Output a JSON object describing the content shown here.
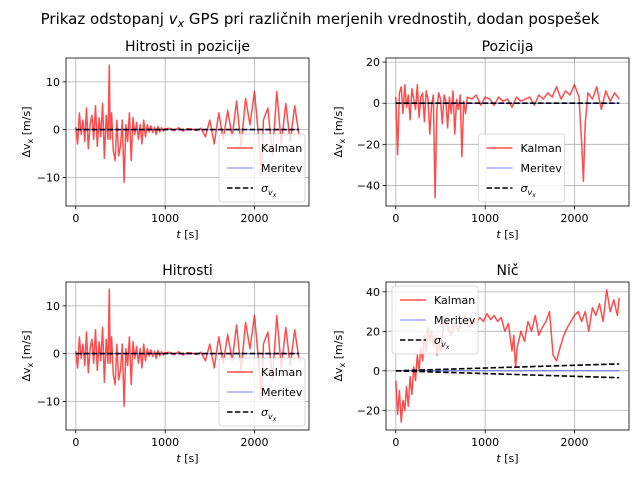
{
  "suptitle": {
    "prefix": "Prikaz odstopanj ",
    "var": "v",
    "sub": "x",
    "suffix": " GPS pri različnih merjenih vrednostih, dodan pospešek"
  },
  "chart_data": [
    {
      "type": "line",
      "title": "Hitrosti in pozicije",
      "xlabel": "t [s]",
      "ylabel": "Δv_x [m/s]",
      "xlim": [
        -110,
        2610
      ],
      "ylim": [
        -16,
        15
      ],
      "xticks": [
        0,
        1000,
        2000
      ],
      "yticks": [
        -10,
        0,
        10
      ],
      "grid": true,
      "legend_position": "lower-right",
      "series": [
        {
          "name": "Kalman",
          "color": "#ff0000",
          "opacity": 0.7,
          "x": [
            0,
            20,
            40,
            60,
            80,
            100,
            120,
            140,
            160,
            180,
            200,
            220,
            240,
            260,
            280,
            300,
            320,
            340,
            360,
            375,
            385,
            400,
            420,
            440,
            460,
            480,
            500,
            520,
            540,
            560,
            580,
            600,
            620,
            640,
            660,
            680,
            700,
            720,
            740,
            760,
            780,
            800,
            820,
            840,
            860,
            880,
            900,
            920,
            940,
            960,
            980,
            1000,
            1050,
            1100,
            1150,
            1200,
            1250,
            1300,
            1350,
            1400,
            1450,
            1500,
            1550,
            1600,
            1650,
            1700,
            1750,
            1800,
            1850,
            1900,
            1950,
            2000,
            2050,
            2080,
            2100,
            2150,
            2200,
            2250,
            2300,
            2350,
            2400,
            2450,
            2500
          ],
          "y": [
            0.5,
            -3.0,
            3.5,
            -1.0,
            2.0,
            -2.5,
            4.5,
            -4.0,
            1.0,
            3.0,
            -2.0,
            5.0,
            -3.5,
            2.5,
            -1.5,
            5.5,
            -6.0,
            3.0,
            -2.0,
            13.5,
            -2.0,
            3.5,
            -4.5,
            -6.5,
            2.0,
            -5.5,
            -3.5,
            2.0,
            -11.0,
            1.0,
            -2.5,
            3.5,
            -6.5,
            2.5,
            -1.0,
            1.5,
            -2.0,
            1.0,
            -3.0,
            2.0,
            -1.5,
            1.0,
            -0.5,
            0.8,
            -0.6,
            0.5,
            -1.0,
            0.7,
            -0.5,
            0.4,
            -0.3,
            0.2,
            0.3,
            -0.2,
            0.4,
            -0.3,
            0.2,
            0.1,
            -0.2,
            0.3,
            -1.5,
            2.0,
            -3.0,
            3.5,
            -2.0,
            4.0,
            -1.5,
            6.0,
            -3.5,
            6.5,
            1.0,
            8.0,
            -2.5,
            -9.5,
            2.0,
            4.5,
            -5.5,
            8.0,
            -3.0,
            5.5,
            -2.5,
            5.0,
            -1.5
          ]
        },
        {
          "name": "Meritev",
          "color": "#0000ff",
          "opacity": 0.35,
          "x": [
            0,
            500,
            1000,
            1500,
            2000,
            2500
          ],
          "y": [
            0,
            0,
            0,
            0,
            0,
            0
          ]
        },
        {
          "name": "σ_{v_x}",
          "color": "#000000",
          "opacity": 1,
          "x": [
            0,
            2500
          ],
          "y": [
            0,
            0
          ],
          "dashed": true
        }
      ]
    },
    {
      "type": "line",
      "title": "Pozicija",
      "xlabel": "t [s]",
      "ylabel": "Δv_x [m/s]",
      "xlim": [
        -110,
        2610
      ],
      "ylim": [
        -50,
        22
      ],
      "xticks": [
        0,
        1000,
        2000
      ],
      "yticks": [
        -40,
        -20,
        0,
        20
      ],
      "grid": true,
      "legend_position": "lower-center",
      "series": [
        {
          "name": "Kalman",
          "color": "#ff0000",
          "opacity": 0.7,
          "x": [
            0,
            20,
            40,
            60,
            80,
            100,
            120,
            140,
            160,
            180,
            200,
            220,
            240,
            260,
            280,
            300,
            320,
            340,
            360,
            380,
            400,
            420,
            440,
            460,
            480,
            500,
            520,
            540,
            560,
            580,
            600,
            620,
            640,
            660,
            680,
            700,
            720,
            740,
            760,
            780,
            800,
            850,
            900,
            950,
            1000,
            1050,
            1100,
            1150,
            1200,
            1250,
            1300,
            1350,
            1400,
            1450,
            1500,
            1550,
            1600,
            1650,
            1700,
            1750,
            1800,
            1850,
            1900,
            1950,
            2000,
            2050,
            2080,
            2100,
            2120,
            2150,
            2200,
            2250,
            2300,
            2350,
            2400,
            2450,
            2500
          ],
          "y": [
            3,
            -25,
            5,
            8,
            -5,
            9,
            -2,
            4,
            -8,
            7,
            2,
            -3,
            9,
            -7,
            3,
            5,
            -9,
            6,
            2,
            -15,
            -1,
            4,
            -46,
            -3,
            5,
            2,
            -10,
            4,
            1,
            -12,
            3,
            -5,
            6,
            -15,
            2,
            -3,
            4,
            -26,
            1,
            -5,
            3,
            2,
            4,
            -1,
            3,
            2,
            -1,
            3,
            1,
            2,
            -2,
            3,
            1,
            2,
            3,
            -1,
            4,
            2,
            5,
            3,
            8,
            2,
            6,
            4,
            9,
            3,
            -20,
            -38,
            -10,
            5,
            2,
            8,
            -3,
            6,
            1,
            5,
            2
          ]
        },
        {
          "name": "Meritev",
          "color": "#0000ff",
          "opacity": 0.35,
          "x": [
            0,
            500,
            1000,
            1500,
            2000,
            2500
          ],
          "y": [
            0,
            0,
            0,
            0,
            0,
            0
          ]
        },
        {
          "name": "σ_{v_x}",
          "color": "#000000",
          "opacity": 1,
          "x": [
            0,
            2500
          ],
          "y": [
            0,
            0
          ],
          "dashed": true
        }
      ]
    },
    {
      "type": "line",
      "title": "Hitrosti",
      "xlabel": "t [s]",
      "ylabel": "Δv_x [m/s]",
      "xlim": [
        -110,
        2610
      ],
      "ylim": [
        -16,
        15
      ],
      "xticks": [
        0,
        1000,
        2000
      ],
      "yticks": [
        -10,
        0,
        10
      ],
      "grid": true,
      "legend_position": "lower-right",
      "series": [
        {
          "name": "Kalman",
          "color": "#ff0000",
          "opacity": 0.7,
          "x": [
            0,
            20,
            40,
            60,
            80,
            100,
            120,
            140,
            160,
            180,
            200,
            220,
            240,
            260,
            280,
            300,
            320,
            340,
            360,
            375,
            385,
            400,
            420,
            440,
            460,
            480,
            500,
            520,
            540,
            560,
            580,
            600,
            620,
            640,
            660,
            680,
            700,
            720,
            740,
            760,
            780,
            800,
            820,
            840,
            860,
            880,
            900,
            920,
            940,
            960,
            980,
            1000,
            1050,
            1100,
            1150,
            1200,
            1250,
            1300,
            1350,
            1400,
            1450,
            1500,
            1550,
            1600,
            1650,
            1700,
            1750,
            1800,
            1850,
            1900,
            1950,
            2000,
            2050,
            2080,
            2100,
            2150,
            2200,
            2250,
            2300,
            2350,
            2400,
            2450,
            2500
          ],
          "y": [
            0.5,
            -3.0,
            3.5,
            -1.0,
            2.0,
            -2.5,
            4.5,
            -4.0,
            1.0,
            3.0,
            -2.0,
            5.0,
            -3.5,
            2.5,
            -1.5,
            5.5,
            -6.0,
            3.0,
            -2.0,
            13.5,
            -2.0,
            3.5,
            -4.5,
            -6.5,
            2.0,
            -5.5,
            -3.5,
            2.0,
            -11.0,
            1.0,
            -2.5,
            3.5,
            -6.5,
            2.5,
            -1.0,
            1.5,
            -2.0,
            1.0,
            -3.0,
            2.0,
            -1.5,
            1.0,
            -0.5,
            0.8,
            -0.6,
            0.5,
            -1.0,
            0.7,
            -0.5,
            0.4,
            -0.3,
            0.2,
            0.3,
            -0.2,
            0.4,
            -0.3,
            0.2,
            0.1,
            -0.2,
            0.3,
            -1.5,
            2.0,
            -3.0,
            3.5,
            -2.0,
            4.0,
            -1.5,
            6.0,
            -3.5,
            6.5,
            1.0,
            8.0,
            -2.5,
            -9.5,
            2.0,
            4.5,
            -5.5,
            8.0,
            -3.0,
            5.5,
            -2.5,
            5.0,
            -1.5
          ]
        },
        {
          "name": "Meritev",
          "color": "#0000ff",
          "opacity": 0.35,
          "x": [
            0,
            500,
            1000,
            1500,
            2000,
            2500
          ],
          "y": [
            0,
            0,
            0,
            0,
            0,
            0
          ]
        },
        {
          "name": "σ_{v_x}",
          "color": "#000000",
          "opacity": 1,
          "x": [
            0,
            2500
          ],
          "y": [
            0,
            0
          ],
          "dashed": true
        }
      ]
    },
    {
      "type": "line",
      "title": "Nič",
      "xlabel": "t [s]",
      "ylabel": "Δv_x [m/s]",
      "xlim": [
        -110,
        2610
      ],
      "ylim": [
        -30,
        45
      ],
      "xticks": [
        0,
        1000,
        2000
      ],
      "yticks": [
        -20,
        0,
        20,
        40
      ],
      "grid": true,
      "legend_position": "upper-left",
      "series": [
        {
          "name": "Kalman",
          "color": "#ff0000",
          "opacity": 0.7,
          "x": [
            0,
            20,
            40,
            60,
            80,
            100,
            120,
            140,
            160,
            180,
            200,
            220,
            240,
            260,
            280,
            300,
            320,
            340,
            360,
            380,
            400,
            420,
            440,
            460,
            480,
            500,
            540,
            580,
            620,
            660,
            700,
            740,
            780,
            820,
            860,
            900,
            940,
            980,
            1020,
            1060,
            1100,
            1140,
            1180,
            1220,
            1260,
            1300,
            1320,
            1340,
            1360,
            1400,
            1440,
            1480,
            1520,
            1560,
            1600,
            1640,
            1680,
            1720,
            1760,
            1800,
            1840,
            1880,
            1920,
            1960,
            2000,
            2040,
            2080,
            2120,
            2160,
            2200,
            2240,
            2280,
            2320,
            2360,
            2400,
            2440,
            2480,
            2500
          ],
          "y": [
            -5,
            -22,
            -10,
            -26,
            -15,
            -20,
            -8,
            -18,
            -3,
            -12,
            2,
            -5,
            8,
            0,
            12,
            5,
            18,
            10,
            22,
            15,
            20,
            12,
            18,
            8,
            14,
            10,
            25,
            22,
            18,
            24,
            20,
            25,
            28,
            22,
            26,
            24,
            27,
            25,
            29,
            26,
            28,
            25,
            27,
            20,
            24,
            10,
            18,
            2,
            12,
            20,
            15,
            25,
            20,
            28,
            18,
            22,
            25,
            30,
            8,
            5,
            12,
            18,
            22,
            25,
            28,
            30,
            25,
            30,
            20,
            32,
            28,
            34,
            25,
            41,
            30,
            36,
            28,
            37
          ]
        },
        {
          "name": "Meritev",
          "color": "#0000ff",
          "opacity": 0.35,
          "x": [
            0,
            500,
            1000,
            1500,
            2000,
            2500
          ],
          "y": [
            0,
            0,
            0,
            0,
            0,
            0
          ]
        },
        {
          "name": "σ_{v_x}",
          "color": "#000000",
          "opacity": 1,
          "x": [
            0,
            2500
          ],
          "y": [
            0,
            3.5
          ],
          "dashed": true
        },
        {
          "name": "",
          "color": "#000000",
          "opacity": 1,
          "legend": false,
          "x": [
            0,
            2500
          ],
          "y": [
            0,
            -3.5
          ],
          "dashed": true
        }
      ]
    }
  ]
}
